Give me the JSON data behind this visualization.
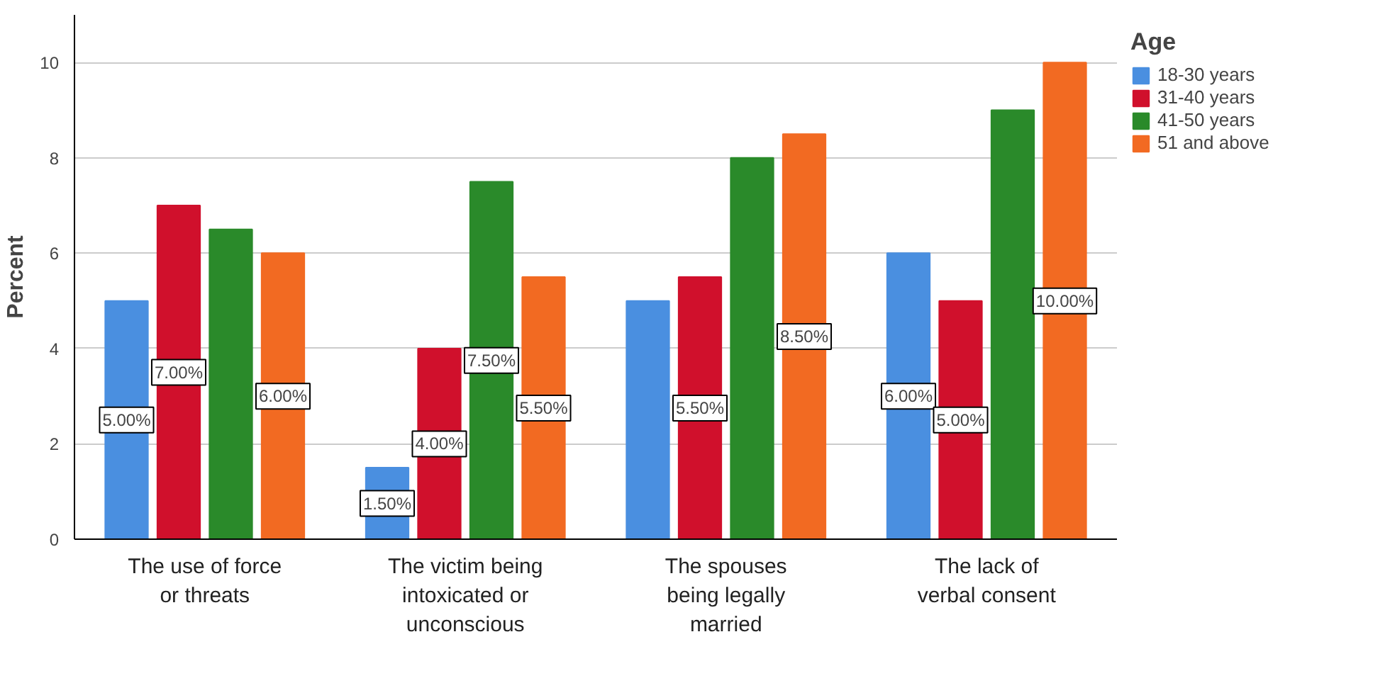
{
  "chart_data": {
    "type": "bar",
    "ylabel": "Percent",
    "legend_title": "Age",
    "categories": [
      "The use of force or threats",
      "The victim being intoxicated or unconscious",
      "The spouses being legally married",
      "The lack of verbal consent"
    ],
    "series": [
      {
        "name": "18-30 years",
        "color": "#4a8fe0",
        "values": [
          5,
          1.5,
          5,
          6
        ],
        "value_labels": [
          "5.00%",
          "1.50%",
          null,
          "6.00%"
        ]
      },
      {
        "name": "31-40 years",
        "color": "#d0102c",
        "values": [
          7,
          4,
          5.5,
          5
        ],
        "value_labels": [
          "7.00%",
          "4.00%",
          "5.50%",
          "5.00%"
        ]
      },
      {
        "name": "41-50 years",
        "color": "#2a8a2a",
        "values": [
          6.5,
          7.5,
          8,
          9
        ],
        "value_labels": [
          null,
          "7.50%",
          null,
          null
        ]
      },
      {
        "name": "51 and above",
        "color": "#f26a22",
        "values": [
          6,
          5.5,
          8.5,
          10
        ],
        "value_labels": [
          "6.00%",
          "5.50%",
          "8.50%",
          "10.00%"
        ]
      }
    ],
    "ylim": [
      0,
      11
    ],
    "yticks": [
      0,
      2,
      4,
      6,
      8,
      10
    ],
    "grid": "y",
    "legend": "top right"
  }
}
